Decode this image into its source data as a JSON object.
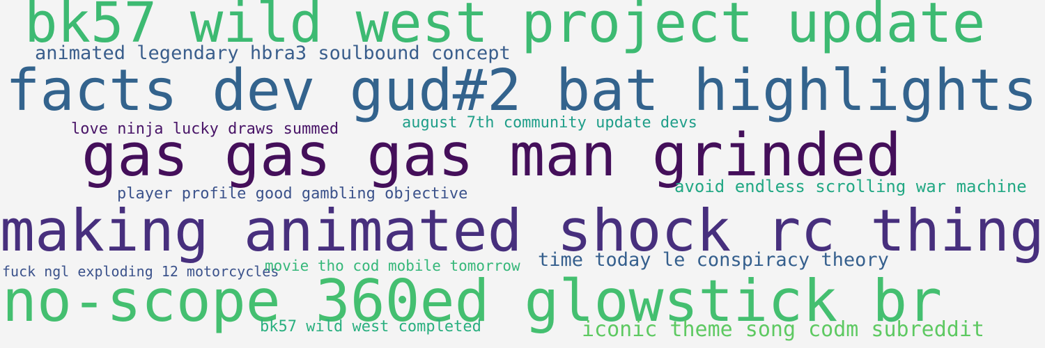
{
  "phrases": [
    {
      "text": "bk57 wild west project update",
      "color": "#3dba72"
    },
    {
      "text": "animated legendary hbra3 soulbound concept",
      "color": "#3a5e8c"
    },
    {
      "text": "facts dev gud#2 bat highlights",
      "color": "#33638d"
    },
    {
      "text": "love ninja lucky draws summed",
      "color": "#481467"
    },
    {
      "text": "august 7th community update devs",
      "color": "#1f9e89"
    },
    {
      "text": "gas gas gas man grinded",
      "color": "#440f5a"
    },
    {
      "text": "player profile good gambling objective",
      "color": "#3b528b"
    },
    {
      "text": "avoid endless scrolling war machine",
      "color": "#22a884"
    },
    {
      "text": "making animated shock rc thing",
      "color": "#472f7d"
    },
    {
      "text": "fuck ngl exploding 12 motorcycles",
      "color": "#3b528b"
    },
    {
      "text": "movie tho cod mobile tomorrow",
      "color": "#35b779"
    },
    {
      "text": "time today le conspiracy theory",
      "color": "#355f8d"
    },
    {
      "text": "no-scope 360ed glowstick br",
      "color": "#44bf70"
    },
    {
      "text": "bk57 wild west completed",
      "color": "#29af7f"
    },
    {
      "text": "iconic theme song codm subreddit",
      "color": "#5ec962"
    }
  ]
}
